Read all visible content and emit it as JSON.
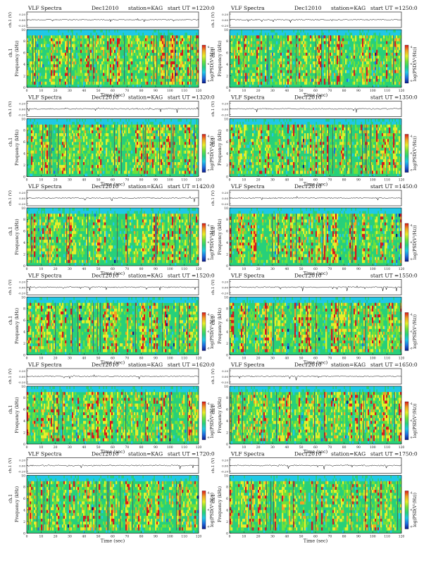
{
  "labels": {
    "time_axis": "Time (sec)",
    "ch1_axis": "ch.1 (V)",
    "ch1_axis_short": "ch.1",
    "freq_axis": "Frequency (kHz)",
    "colorbar_label": "log(PSD(V²/Hz))"
  },
  "panels": [
    {
      "title_left": "VLF Spectra",
      "date": "Dec12010",
      "station": "station=KAG",
      "start": "start  UT =1220:0",
      "show_station": true
    },
    {
      "title_left": "VLF Spectra",
      "date": "Dec12010",
      "station": "station=KAG",
      "start": "start  UT =1250:0",
      "show_station": true
    },
    {
      "title_left": "VLF Spectra",
      "date": "Dec12010",
      "station": "station=KAG",
      "start": "start  UT =1320:0",
      "show_station": true
    },
    {
      "title_left": "VLF Spectra",
      "date": "Dec12010",
      "station": "",
      "start": "start  UT =1350:0",
      "show_station": false
    },
    {
      "title_left": "VLF Spectra",
      "date": "Dec12010",
      "station": "station=KAG",
      "start": "start  UT =1420:0",
      "show_station": true
    },
    {
      "title_left": "VLF Spectra",
      "date": "Dec12010",
      "station": "",
      "start": "start  UT =1450:0",
      "show_station": false
    },
    {
      "title_left": "VLF Spectra",
      "date": "Dec12010",
      "station": "station=KAG",
      "start": "start  UT =1520:0",
      "show_station": true
    },
    {
      "title_left": "VLF Spectra",
      "date": "Dec12010",
      "station": "",
      "start": "start  UT =1550:0",
      "show_station": false
    },
    {
      "title_left": "VLF Spectra",
      "date": "Dec12010",
      "station": "station=KAG",
      "start": "start  UT =1620:0",
      "show_station": true
    },
    {
      "title_left": "VLF Spectra",
      "date": "Dec12010",
      "station": "station=KAG",
      "start": "start  UT =1650:0",
      "show_station": true
    },
    {
      "title_left": "VLF Spectra",
      "date": "Dec12010",
      "station": "station=KAG",
      "start": "start  UT =1720:0",
      "show_station": true
    },
    {
      "title_left": "VLF Spectra",
      "date": "Dec12010",
      "station": "station=KAG",
      "start": "start  UT =1750:0",
      "show_station": true
    }
  ],
  "chart_data": {
    "type": "heatmap",
    "description_axes": {
      "x_range": [
        0,
        120
      ],
      "x_ticks": [
        0,
        10,
        20,
        30,
        40,
        50,
        60,
        70,
        80,
        90,
        100,
        110,
        120
      ],
      "freq_range_khz": [
        0,
        10
      ],
      "freq_ticks": [
        0,
        2,
        4,
        6,
        8,
        10
      ],
      "ch1_ticks": [
        "0.20",
        "0.00",
        "-0.20"
      ],
      "colorbar_ticks": [
        "-4",
        "-6",
        "-8"
      ]
    },
    "colorscale": [
      "#0b1a8c",
      "#1e6fe0",
      "#20c8e6",
      "#27d07a",
      "#6fe03a",
      "#e6ee2a",
      "#f2a024",
      "#d8181c"
    ]
  }
}
